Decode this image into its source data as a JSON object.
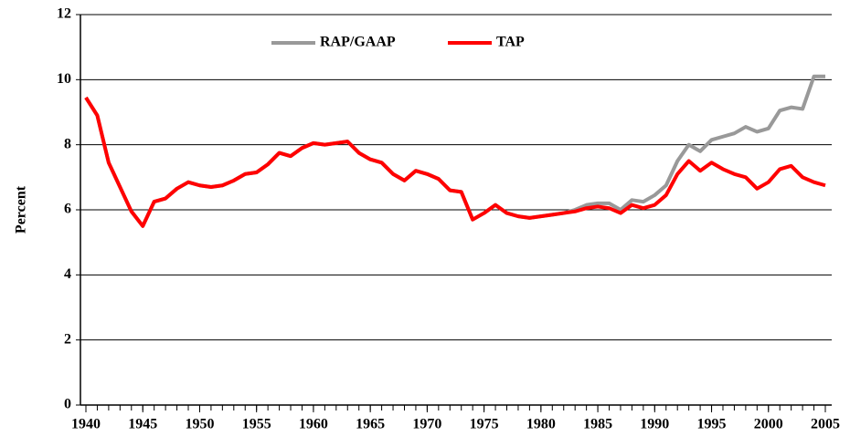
{
  "chart_data": {
    "type": "line",
    "y_label": "Percent",
    "x": [
      1940,
      1941,
      1942,
      1943,
      1944,
      1945,
      1946,
      1947,
      1948,
      1949,
      1950,
      1951,
      1952,
      1953,
      1954,
      1955,
      1956,
      1957,
      1958,
      1959,
      1960,
      1961,
      1962,
      1963,
      1964,
      1965,
      1966,
      1967,
      1968,
      1969,
      1970,
      1971,
      1972,
      1973,
      1974,
      1975,
      1976,
      1977,
      1978,
      1979,
      1980,
      1981,
      1982,
      1983,
      1984,
      1985,
      1986,
      1987,
      1988,
      1989,
      1990,
      1991,
      1992,
      1993,
      1994,
      1995,
      1996,
      1997,
      1998,
      1999,
      2000,
      2001,
      2002,
      2003,
      2004,
      2005
    ],
    "series": [
      {
        "name": "RAP/GAAP",
        "color": "#999999",
        "values": [
          9.45,
          8.9,
          7.45,
          6.7,
          5.95,
          5.5,
          6.25,
          6.35,
          6.65,
          6.85,
          6.75,
          6.7,
          6.75,
          6.9,
          7.1,
          7.15,
          7.4,
          7.75,
          7.65,
          7.9,
          8.05,
          8.0,
          8.05,
          8.1,
          7.75,
          7.55,
          7.45,
          7.1,
          6.9,
          7.2,
          7.1,
          6.95,
          6.6,
          6.55,
          5.7,
          5.9,
          6.15,
          5.9,
          5.8,
          5.75,
          5.8,
          5.85,
          5.9,
          6.0,
          6.15,
          6.2,
          6.2,
          6.0,
          6.3,
          6.25,
          6.45,
          6.75,
          7.5,
          8.0,
          7.8,
          8.15,
          8.25,
          8.35,
          8.55,
          8.4,
          8.5,
          9.05,
          9.15,
          9.1,
          10.1,
          10.1
        ]
      },
      {
        "name": "TAP",
        "color": "#ff0000",
        "values": [
          9.45,
          8.9,
          7.45,
          6.7,
          5.95,
          5.5,
          6.25,
          6.35,
          6.65,
          6.85,
          6.75,
          6.7,
          6.75,
          6.9,
          7.1,
          7.15,
          7.4,
          7.75,
          7.65,
          7.9,
          8.05,
          8.0,
          8.05,
          8.1,
          7.75,
          7.55,
          7.45,
          7.1,
          6.9,
          7.2,
          7.1,
          6.95,
          6.6,
          6.55,
          5.7,
          5.9,
          6.15,
          5.9,
          5.8,
          5.75,
          5.8,
          5.85,
          5.9,
          5.95,
          6.05,
          6.1,
          6.05,
          5.9,
          6.15,
          6.05,
          6.15,
          6.45,
          7.1,
          7.5,
          7.2,
          7.45,
          7.25,
          7.1,
          7.0,
          6.65,
          6.85,
          7.25,
          7.35,
          7.0,
          6.85,
          6.75
        ]
      }
    ],
    "xlim": [
      1940,
      2005
    ],
    "xticks": [
      1940,
      1945,
      1950,
      1955,
      1960,
      1965,
      1970,
      1975,
      1980,
      1985,
      1990,
      1995,
      2000,
      2005
    ],
    "ylim": [
      0,
      12
    ],
    "yticks": [
      0,
      2,
      4,
      6,
      8,
      10,
      12
    ],
    "grid": true,
    "legend": "top"
  }
}
